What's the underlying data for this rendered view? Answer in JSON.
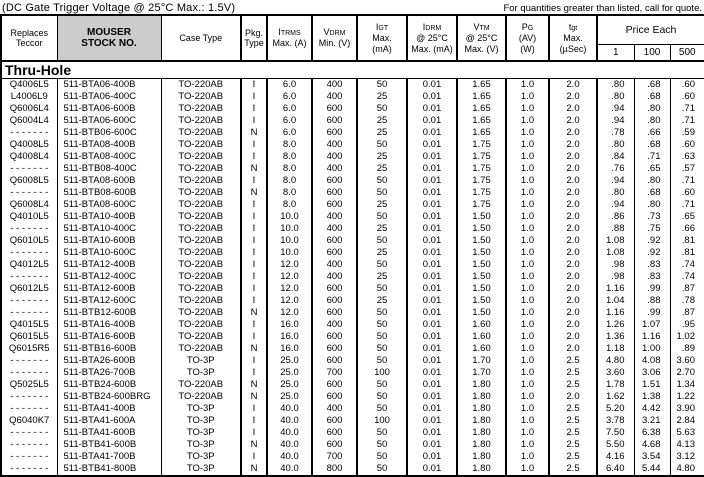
{
  "page": {
    "note_left": "(DC Gate Trigger Voltage @ 25°C Max.:  1.5V)",
    "note_right": "For quantities greater than listed, call for quote.",
    "section_title": "Thru-Hole"
  },
  "table": {
    "header": {
      "replaces": {
        "line1": "Replaces",
        "line2": "Teccor"
      },
      "stock": {
        "line1": "MOUSER",
        "line2": "STOCK NO."
      },
      "case": {
        "line1": "Case Type"
      },
      "pkg": {
        "line1": "Pkg.",
        "line2": "Type"
      },
      "itrms": {
        "sym": "I",
        "sub": "TRMS",
        "line2": "Max. (A)"
      },
      "vdrm": {
        "sym": "V",
        "sub": "DRM",
        "line2": "Min. (V)"
      },
      "igt": {
        "sym": "I",
        "sub": "GT",
        "line2": "Max.",
        "line3": "(mA)"
      },
      "idrm": {
        "sym": "I",
        "sub": "DRM",
        "line2": "@ 25°C",
        "line3": "Max. (mA)"
      },
      "vtm": {
        "sym": "V",
        "sub": "TM",
        "line2": "@ 25°C",
        "line3": "Max. (V)"
      },
      "pg": {
        "sym": "P",
        "sub": "G",
        "line2": "(AV)",
        "line3": "(W)"
      },
      "tgt": {
        "sym": "t",
        "sub": "gt",
        "line2": "Max.",
        "line3": "(µSec)"
      },
      "price": {
        "title": "Price Each",
        "tiers": [
          "1",
          "100",
          "500"
        ]
      }
    },
    "col_ids": [
      "replaces-teccor",
      "mouser-stock-no",
      "case-type",
      "pkg-type",
      "itrms-max",
      "vdrm-min",
      "igt-max",
      "idrm-max",
      "vtm-max",
      "pg-av",
      "tgt-max",
      "price-1",
      "price-100",
      "price-500"
    ],
    "rows": [
      [
        "Q4006L5",
        "511-BTA06-400B",
        "TO-220AB",
        "I",
        "6.0",
        "400",
        "50",
        "0.01",
        "1.65",
        "1.0",
        "2.0",
        ".80",
        ".68",
        ".60"
      ],
      [
        "L4006L9",
        "511-BTA06-400C",
        "TO-220AB",
        "I",
        "6.0",
        "400",
        "25",
        "0.01",
        "1.65",
        "1.0",
        "2.0",
        ".80",
        ".68",
        ".60"
      ],
      [
        "Q6006L4",
        "511-BTA06-600B",
        "TO-220AB",
        "I",
        "6.0",
        "600",
        "50",
        "0.01",
        "1.65",
        "1.0",
        "2.0",
        ".94",
        ".80",
        ".71"
      ],
      [
        "Q6004L4",
        "511-BTA06-600C",
        "TO-220AB",
        "I",
        "6.0",
        "600",
        "25",
        "0.01",
        "1.65",
        "1.0",
        "2.0",
        ".94",
        ".80",
        ".71"
      ],
      [
        "- - - - - - -",
        "511-BTB06-600C",
        "TO-220AB",
        "N",
        "6.0",
        "600",
        "25",
        "0.01",
        "1.65",
        "1.0",
        "2.0",
        ".78",
        ".66",
        ".59"
      ],
      [
        "Q4008L5",
        "511-BTA08-400B",
        "TO-220AB",
        "I",
        "8.0",
        "400",
        "50",
        "0.01",
        "1.75",
        "1.0",
        "2.0",
        ".80",
        ".68",
        ".60"
      ],
      [
        "Q4008L4",
        "511-BTA08-400C",
        "TO-220AB",
        "I",
        "8.0",
        "400",
        "25",
        "0.01",
        "1.75",
        "1.0",
        "2.0",
        ".84",
        ".71",
        ".63"
      ],
      [
        "- - - - - - -",
        "511-BTB08-400C",
        "TO-220AB",
        "N",
        "8.0",
        "400",
        "25",
        "0.01",
        "1.75",
        "1.0",
        "2.0",
        ".76",
        ".65",
        ".57"
      ],
      [
        "Q6008L5",
        "511-BTA08-600B",
        "TO-220AB",
        "I",
        "8.0",
        "600",
        "50",
        "0.01",
        "1.75",
        "1.0",
        "2.0",
        ".94",
        ".80",
        ".71"
      ],
      [
        "- - - - - - -",
        "511-BTB08-600B",
        "TO-220AB",
        "N",
        "8.0",
        "600",
        "50",
        "0.01",
        "1.75",
        "1.0",
        "2.0",
        ".80",
        ".68",
        ".60"
      ],
      [
        "Q6008L4",
        "511-BTA08-600C",
        "TO-220AB",
        "I",
        "8.0",
        "600",
        "25",
        "0.01",
        "1.75",
        "1.0",
        "2.0",
        ".94",
        ".80",
        ".71"
      ],
      [
        "Q4010L5",
        "511-BTA10-400B",
        "TO-220AB",
        "I",
        "10.0",
        "400",
        "50",
        "0.01",
        "1.50",
        "1.0",
        "2.0",
        ".86",
        ".73",
        ".65"
      ],
      [
        "- - - - - - -",
        "511-BTA10-400C",
        "TO-220AB",
        "I",
        "10.0",
        "400",
        "25",
        "0.01",
        "1.50",
        "1.0",
        "2.0",
        ".88",
        ".75",
        ".66"
      ],
      [
        "Q6010L5",
        "511-BTA10-600B",
        "TO-220AB",
        "I",
        "10.0",
        "600",
        "50",
        "0.01",
        "1.50",
        "1.0",
        "2.0",
        "1.08",
        ".92",
        ".81"
      ],
      [
        "- - - - - - -",
        "511-BTA10-600C",
        "TO-220AB",
        "I",
        "10.0",
        "600",
        "25",
        "0.01",
        "1.50",
        "1.0",
        "2.0",
        "1.08",
        ".92",
        ".81"
      ],
      [
        "Q4012L5",
        "511-BTA12-400B",
        "TO-220AB",
        "I",
        "12.0",
        "400",
        "50",
        "0.01",
        "1.50",
        "1.0",
        "2.0",
        ".98",
        ".83",
        ".74"
      ],
      [
        "- - - - - - -",
        "511-BTA12-400C",
        "TO-220AB",
        "I",
        "12.0",
        "400",
        "25",
        "0.01",
        "1.50",
        "1.0",
        "2.0",
        ".98",
        ".83",
        ".74"
      ],
      [
        "Q6012L5",
        "511-BTA12-600B",
        "TO-220AB",
        "I",
        "12.0",
        "600",
        "50",
        "0.01",
        "1.50",
        "1.0",
        "2.0",
        "1.16",
        ".99",
        ".87"
      ],
      [
        "- - - - - - -",
        "511-BTA12-600C",
        "TO-220AB",
        "I",
        "12.0",
        "600",
        "25",
        "0.01",
        "1.50",
        "1.0",
        "2.0",
        "1.04",
        ".88",
        ".78"
      ],
      [
        "- - - - - - -",
        "511-BTB12-600B",
        "TO-220AB",
        "N",
        "12.0",
        "600",
        "50",
        "0.01",
        "1.50",
        "1.0",
        "2.0",
        "1.16",
        ".99",
        ".87"
      ],
      [
        "Q4015L5",
        "511-BTA16-400B",
        "TO-220AB",
        "I",
        "16.0",
        "400",
        "50",
        "0.01",
        "1.60",
        "1.0",
        "2.0",
        "1.26",
        "1.07",
        ".95"
      ],
      [
        "Q6015L5",
        "511-BTA16-600B",
        "TO-220AB",
        "I",
        "16.0",
        "600",
        "50",
        "0.01",
        "1.60",
        "1.0",
        "2.0",
        "1.36",
        "1.16",
        "1.02"
      ],
      [
        "Q6015R5",
        "511-BTB16-600B",
        "TO-220AB",
        "N",
        "16.0",
        "600",
        "50",
        "0.01",
        "1.60",
        "1.0",
        "2.0",
        "1.18",
        "1.00",
        ".89"
      ],
      [
        "- - - - - - -",
        "511-BTA26-600B",
        "TO-3P",
        "I",
        "25.0",
        "600",
        "50",
        "0.01",
        "1.70",
        "1.0",
        "2.5",
        "4.80",
        "4.08",
        "3.60"
      ],
      [
        "- - - - - - -",
        "511-BTA26-700B",
        "TO-3P",
        "I",
        "25.0",
        "700",
        "100",
        "0.01",
        "1.70",
        "1.0",
        "2.5",
        "3.60",
        "3.06",
        "2.70"
      ],
      [
        "Q5025L5",
        "511-BTB24-600B",
        "TO-220AB",
        "N",
        "25.0",
        "600",
        "50",
        "0.01",
        "1.80",
        "1.0",
        "2.5",
        "1.78",
        "1.51",
        "1.34"
      ],
      [
        "- - - - - - -",
        "511-BTB24-600BRG",
        "TO-220AB",
        "N",
        "25.0",
        "600",
        "50",
        "0.01",
        "1.80",
        "1.0",
        "2.0",
        "1.62",
        "1.38",
        "1.22"
      ],
      [
        "- - - - - - -",
        "511-BTA41-400B",
        "TO-3P",
        "I",
        "40.0",
        "400",
        "50",
        "0.01",
        "1.80",
        "1.0",
        "2.5",
        "5.20",
        "4.42",
        "3.90"
      ],
      [
        "Q6040K7",
        "511-BTA41-600A",
        "TO-3P",
        "I",
        "40.0",
        "600",
        "100",
        "0.01",
        "1.80",
        "1.0",
        "2.5",
        "3.78",
        "3.21",
        "2.84"
      ],
      [
        "- - - - - - -",
        "511-BTA41-600B",
        "TO-3P",
        "I",
        "40.0",
        "600",
        "50",
        "0.01",
        "1.80",
        "1.0",
        "2.5",
        "7.50",
        "6.38",
        "5.63"
      ],
      [
        "- - - - - - -",
        "511-BTB41-600B",
        "TO-3P",
        "N",
        "40.0",
        "600",
        "50",
        "0.01",
        "1.80",
        "1.0",
        "2.5",
        "5.50",
        "4.68",
        "4.13"
      ],
      [
        "- - - - - - -",
        "511-BTA41-700B",
        "TO-3P",
        "I",
        "40.0",
        "700",
        "50",
        "0.01",
        "1.80",
        "1.0",
        "2.5",
        "4.16",
        "3.54",
        "3.12"
      ],
      [
        "- - - - - - -",
        "511-BTB41-800B",
        "TO-3P",
        "N",
        "40.0",
        "800",
        "50",
        "0.01",
        "1.80",
        "1.0",
        "2.5",
        "6.40",
        "5.44",
        "4.80"
      ]
    ]
  }
}
